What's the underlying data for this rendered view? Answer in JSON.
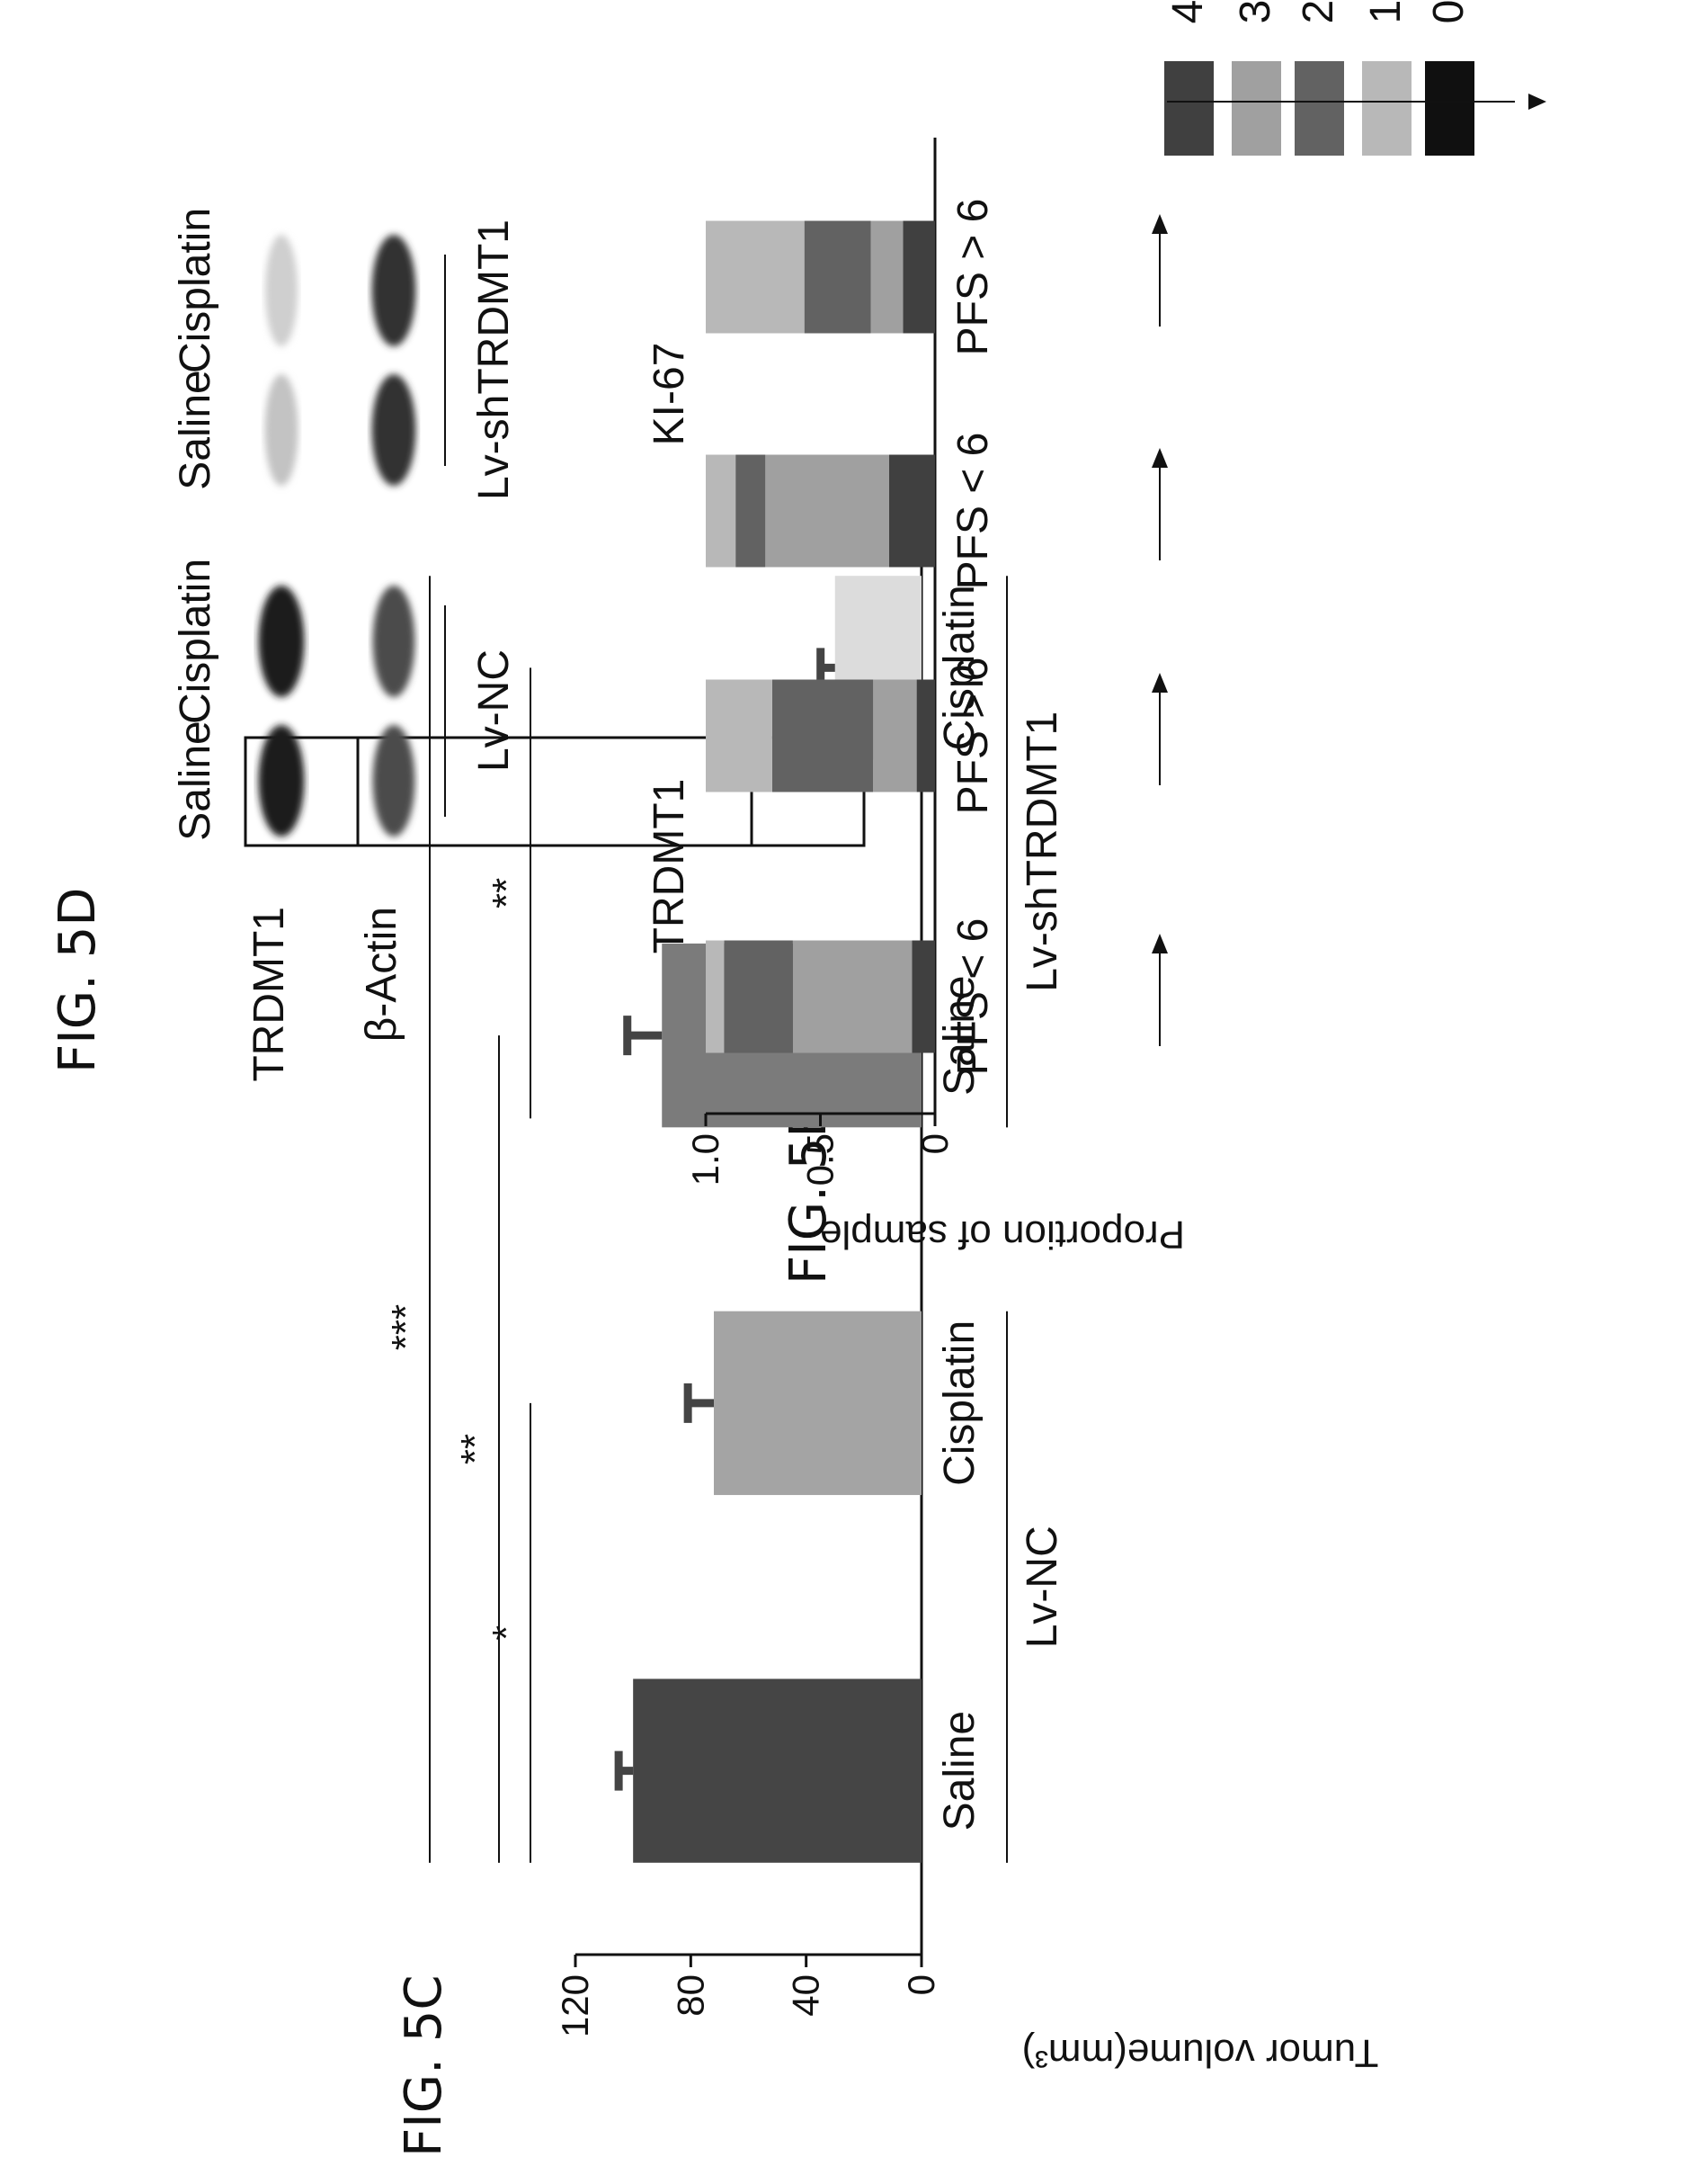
{
  "figures": {
    "c_label": "FIG. 5C",
    "d_label": "FIG. 5D",
    "e_label": "FIG. 5E"
  },
  "chart_data": [
    {
      "id": "5C",
      "type": "bar",
      "ylabel": "Tumor volume(mm³)",
      "ylim": [
        0,
        120
      ],
      "yticks": [
        0,
        40,
        80,
        120
      ],
      "categories": [
        "Saline",
        "Cisplatin",
        "Saline",
        "Cisplatin"
      ],
      "groups": [
        {
          "label": "Lv-NC",
          "members": [
            0,
            1
          ]
        },
        {
          "label": "Lv-shTRDMT1",
          "members": [
            2,
            3
          ]
        }
      ],
      "values": [
        100,
        72,
        90,
        30
      ],
      "errors": [
        5,
        9,
        12,
        5
      ],
      "colors": [
        "#454545",
        "#a4a4a4",
        "#7b7b7b",
        "#dcdcdc"
      ],
      "significance": [
        {
          "label": "*",
          "from": 0,
          "to": 1
        },
        {
          "label": "**",
          "from": 0,
          "to": 2
        },
        {
          "label": "**",
          "from": 2,
          "to": 3
        },
        {
          "label": "***",
          "from": 0,
          "to": 3
        }
      ]
    },
    {
      "id": "5E",
      "type": "bar",
      "stacked": true,
      "ylabel": "Proportion of sample",
      "ylim": [
        0,
        1.0
      ],
      "yticks": [
        "0",
        "0.5",
        "1.0"
      ],
      "groups": [
        {
          "label": "TRDMT1",
          "bars": [
            {
              "label": "PFS < 6",
              "segments": [
                0.1,
                0.52,
                0.3,
                0.08
              ]
            },
            {
              "label": "PFS > 6",
              "segments": [
                0.08,
                0.19,
                0.44,
                0.29
              ]
            }
          ]
        },
        {
          "label": "KI-67",
          "bars": [
            {
              "label": "PFS < 6",
              "segments": [
                0.2,
                0.54,
                0.13,
                0.13
              ]
            },
            {
              "label": "PFS > 6",
              "segments": [
                0.14,
                0.14,
                0.29,
                0.43
              ]
            }
          ]
        }
      ],
      "legend": [
        {
          "label": "4",
          "color": "#404040"
        },
        {
          "label": "3",
          "color": "#a0a0a0"
        },
        {
          "label": "2",
          "color": "#626262"
        },
        {
          "label": "1",
          "color": "#b8b8b8"
        },
        {
          "label": "0",
          "color": "#101010"
        }
      ]
    }
  ],
  "blot": {
    "lanes": [
      "Saline",
      "Cisplatin",
      "Saline",
      "Cisplatin"
    ],
    "rows": [
      "TRDMT1",
      "β-Actin"
    ],
    "groups": [
      "Lv-NC",
      "Lv-shTRDMT1"
    ],
    "trdmt1_intensity": [
      0.95,
      0.95,
      0.25,
      0.2
    ],
    "actin_intensity": [
      0.75,
      0.75,
      0.85,
      0.85
    ]
  }
}
